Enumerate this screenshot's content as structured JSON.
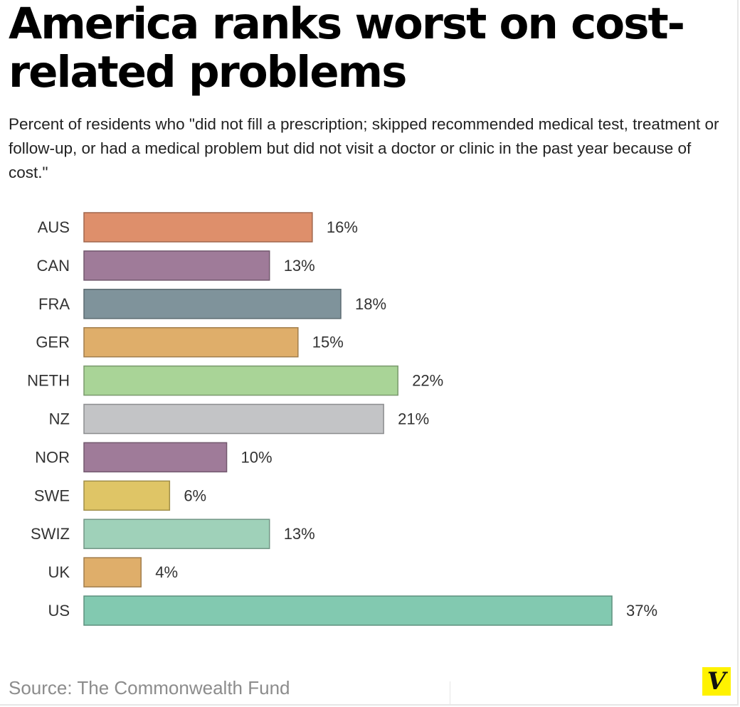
{
  "chart_data": {
    "type": "bar",
    "orientation": "horizontal",
    "title": "America ranks worst on cost-related problems",
    "subtitle": "Percent of residents who \"did not fill a prescription; skipped recommended medical test, treatment or follow-up, or had a medical problem but did not visit a doctor or clinic in the past year because of cost.\"",
    "categories": [
      "AUS",
      "CAN",
      "FRA",
      "GER",
      "NETH",
      "NZ",
      "NOR",
      "SWE",
      "SWIZ",
      "UK",
      "US"
    ],
    "values": [
      16,
      13,
      18,
      15,
      22,
      21,
      10,
      6,
      13,
      4,
      37
    ],
    "value_labels": [
      "16%",
      "13%",
      "18%",
      "15%",
      "22%",
      "21%",
      "10%",
      "6%",
      "13%",
      "4%",
      "37%"
    ],
    "bar_colors": [
      "#de8f6b",
      "#9f7b99",
      "#7f939b",
      "#dfae6a",
      "#a9d497",
      "#c3c4c6",
      "#9f7b99",
      "#dfc566",
      "#9fd1b9",
      "#dfae6a",
      "#82c9b0"
    ],
    "xlabel": "",
    "ylabel": "",
    "xlim": [
      0,
      37
    ],
    "grid": false,
    "legend": "none",
    "source": "Source: The Commonwealth Fund"
  },
  "logo": {
    "text": "V",
    "color": "#fff200"
  }
}
